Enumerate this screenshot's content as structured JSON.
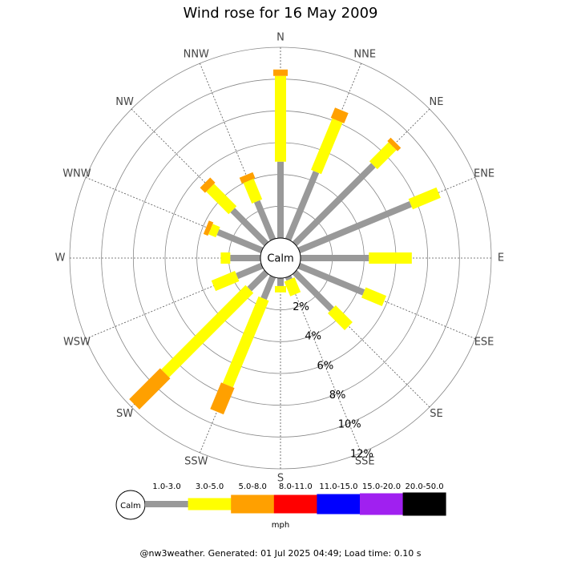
{
  "chart_data": {
    "type": "windrose",
    "title": "Wind rose for 16 May 2009",
    "calm_label": "Calm",
    "categories": [
      "N",
      "NNE",
      "NE",
      "ENE",
      "E",
      "ESE",
      "SE",
      "SSE",
      "S",
      "SSW",
      "SW",
      "WSW",
      "W",
      "WNW",
      "NW",
      "NNW"
    ],
    "series": [
      {
        "name": "1.0-3.0",
        "color": "#999999",
        "values": [
          4.8,
          4.6,
          7.0,
          7.6,
          4.3,
          4.4,
          3.3,
          0.2,
          0.5,
          1.5,
          1.5,
          1.7,
          1.9,
          3.0,
          3.0,
          2.6
        ]
      },
      {
        "name": "3.0-5.0",
        "color": "#ffff00",
        "values": [
          5.4,
          3.5,
          1.7,
          1.9,
          2.7,
          1.4,
          1.5,
          1.0,
          0.4,
          5.9,
          7.5,
          1.6,
          0.6,
          0.5,
          2.0,
          1.4
        ]
      },
      {
        "name": "5.0-8.0",
        "color": "#ffa000",
        "values": [
          0.4,
          0.7,
          0.3,
          0,
          0,
          0,
          0,
          0,
          0,
          1.8,
          2.75,
          0,
          0,
          0.3,
          0.45,
          0.4
        ]
      },
      {
        "name": "8.0-11.0",
        "color": "#ff0000",
        "values": [
          0,
          0,
          0,
          0,
          0,
          0,
          0,
          0,
          0,
          0,
          0,
          0,
          0,
          0,
          0,
          0
        ]
      },
      {
        "name": "11.0-15.0",
        "color": "#0000ff",
        "values": [
          0,
          0,
          0,
          0,
          0,
          0,
          0,
          0,
          0,
          0,
          0,
          0,
          0,
          0,
          0,
          0
        ]
      },
      {
        "name": "15.0-20.0",
        "color": "#a020f0",
        "values": [
          0,
          0,
          0,
          0,
          0,
          0,
          0,
          0,
          0,
          0,
          0,
          0,
          0,
          0,
          0,
          0
        ]
      },
      {
        "name": "20.0-50.0",
        "color": "#000000",
        "values": [
          0,
          0,
          0,
          0,
          0,
          0,
          0,
          0,
          0,
          0,
          0,
          0,
          0,
          0,
          0,
          0
        ]
      }
    ],
    "rlim": [
      0,
      12
    ],
    "rticks": [
      {
        "value": 2,
        "label": "2%"
      },
      {
        "value": 4,
        "label": "4%"
      },
      {
        "value": 6,
        "label": "6%"
      },
      {
        "value": 8,
        "label": "8%"
      },
      {
        "value": 10,
        "label": "10%"
      },
      {
        "value": 12,
        "label": "12%"
      }
    ],
    "legend_unit": "mph",
    "footer": "@nw3weather.  Generated: 01 Jul 2025 04:49; Load time: 0.10 s"
  }
}
